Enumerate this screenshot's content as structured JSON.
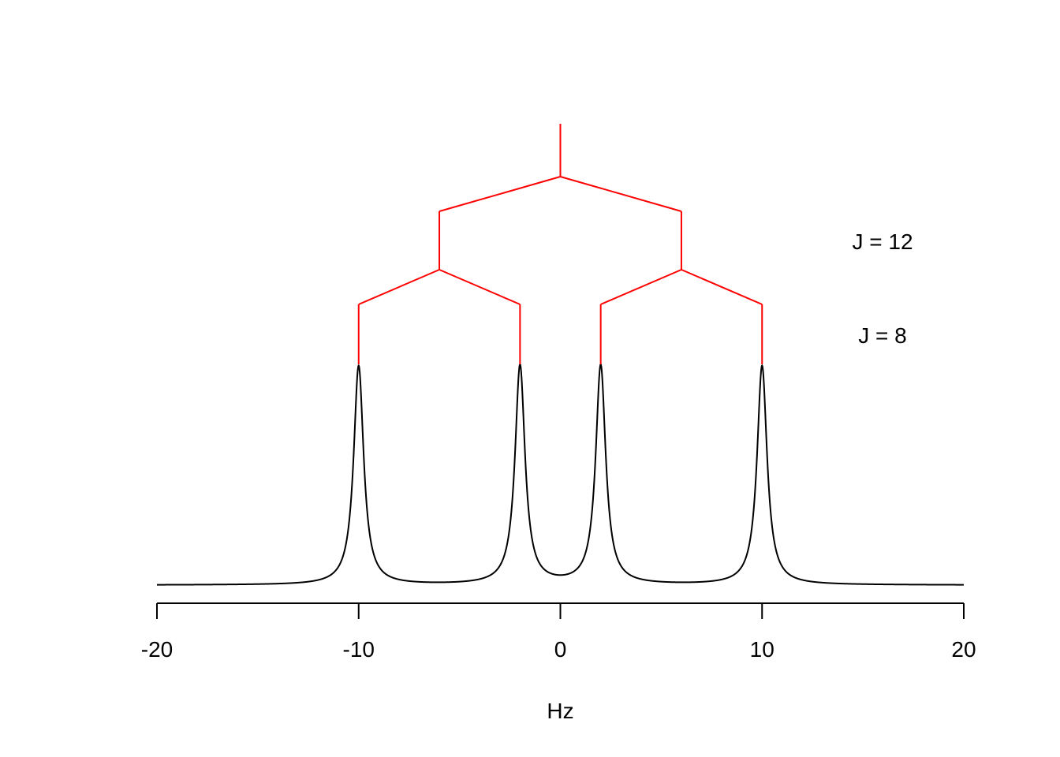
{
  "chart_data": {
    "type": "line",
    "title": "",
    "xlabel": "Hz",
    "ylabel": "",
    "xlim": [
      -20,
      20
    ],
    "x_ticks": [
      -20,
      -10,
      0,
      10,
      20
    ],
    "x_tick_labels": [
      "-20",
      "-10",
      "0",
      "10",
      "20"
    ],
    "grid": false,
    "spectrum": {
      "peaks": [
        -10,
        -2,
        2,
        10
      ],
      "peak_height": 1.0,
      "line_width_hz": 0.3,
      "color": "#000000"
    },
    "splitting_tree": {
      "color": "#ff0000",
      "center": 0,
      "levels": [
        {
          "J": 12,
          "label": "J = 12",
          "positions": [
            -6,
            6
          ]
        },
        {
          "J": 8,
          "label": "J = 8",
          "positions": [
            -10,
            -2,
            2,
            10
          ]
        }
      ]
    }
  }
}
